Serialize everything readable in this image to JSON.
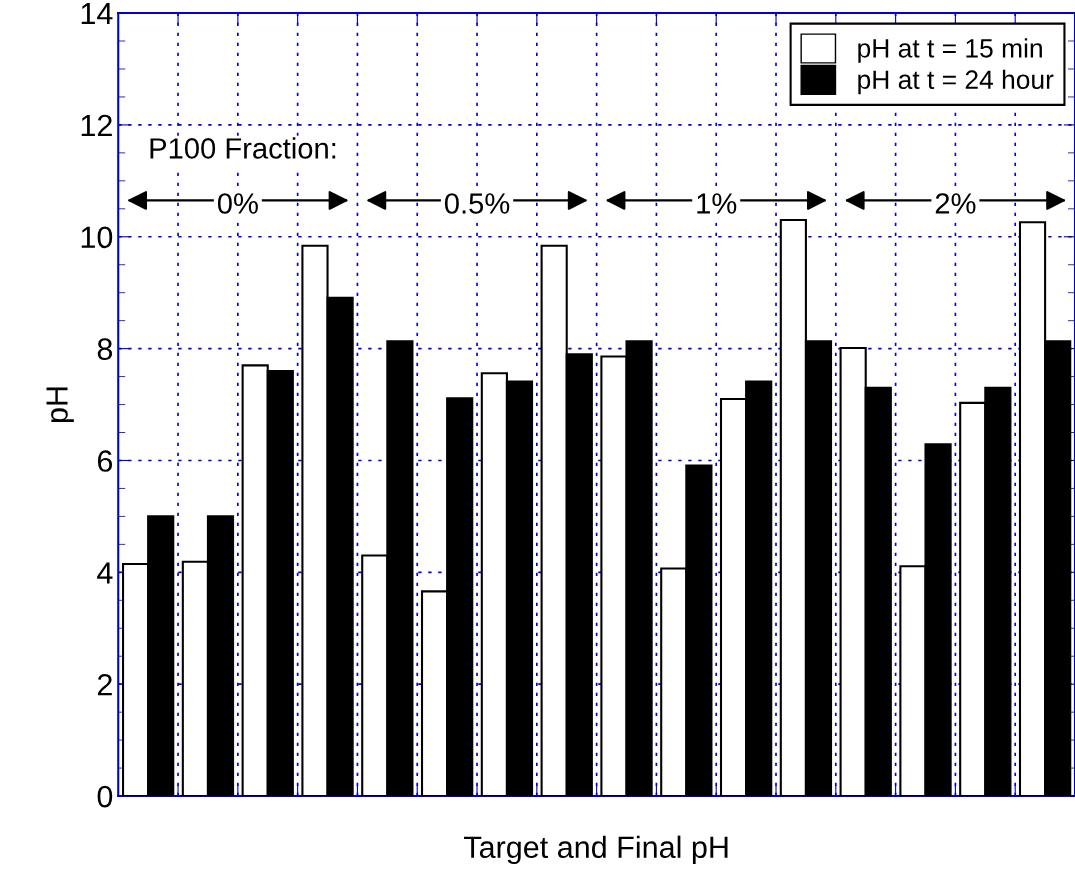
{
  "chart_data": {
    "type": "bar",
    "xlabel": "Target and Final pH",
    "ylabel": "pH",
    "categories": [
      null,
      null,
      null,
      null,
      null,
      null,
      null,
      null,
      null,
      null,
      null,
      null,
      null,
      null,
      null,
      null
    ],
    "series": [
      {
        "name": "pH at t = 15 min",
        "color": "#ffffff",
        "values": [
          4.15,
          4.19,
          7.7,
          9.84,
          4.3,
          3.66,
          7.56,
          9.84,
          7.86,
          4.07,
          7.1,
          10.3,
          8.01,
          4.11,
          7.03,
          10.26
        ]
      },
      {
        "name": "pH at t = 24 hour",
        "color": "#000000",
        "values": [
          5.0,
          5.0,
          7.6,
          8.91,
          8.13,
          7.11,
          7.41,
          7.9,
          8.13,
          5.91,
          7.41,
          8.13,
          7.3,
          6.29,
          7.3,
          8.13
        ]
      }
    ],
    "ylim": [
      0,
      14
    ],
    "yticks": [
      0,
      2,
      4,
      6,
      8,
      10,
      12,
      14
    ],
    "grid": true,
    "legend": "top right",
    "annotations": [
      "P100 Fraction:",
      "0%",
      "0.5%",
      "1%",
      "2%"
    ]
  }
}
